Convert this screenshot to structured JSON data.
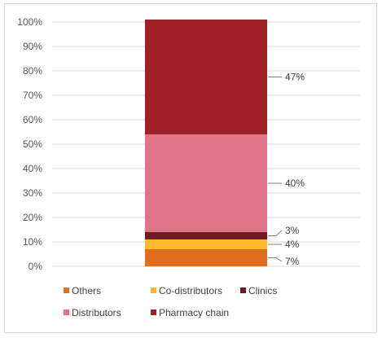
{
  "chart_data": {
    "type": "bar",
    "stacked": true,
    "percent_axis": true,
    "ylim": [
      0,
      100
    ],
    "y_ticks": [
      "0%",
      "10%",
      "20%",
      "30%",
      "40%",
      "50%",
      "60%",
      "70%",
      "80%",
      "90%",
      "100%"
    ],
    "grid": true,
    "legend_placement": "bottom",
    "series": [
      {
        "name": "Others",
        "value": 7,
        "label": "7%",
        "color": "#e06c1f"
      },
      {
        "name": "Co-distributors",
        "value": 4,
        "label": "4%",
        "color": "#fdb92e"
      },
      {
        "name": "Clinics",
        "value": 3,
        "label": "3%",
        "color": "#6e1c1c"
      },
      {
        "name": "Distributors",
        "value": 40,
        "label": "40%",
        "color": "#e0758a"
      },
      {
        "name": "Pharmacy chain",
        "value": 47,
        "label": "47%",
        "color": "#a02027"
      }
    ]
  }
}
